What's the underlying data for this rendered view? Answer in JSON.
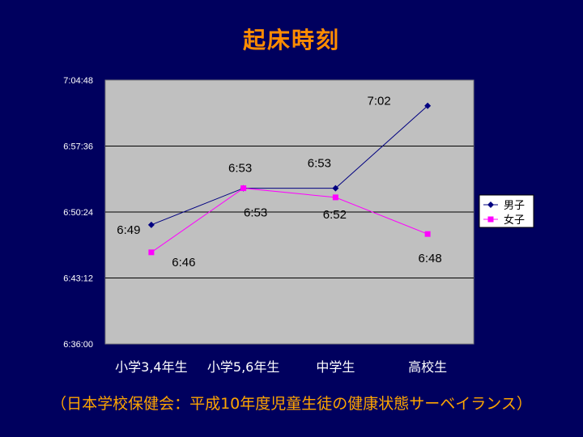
{
  "chart_data": {
    "type": "line",
    "title": "起床時刻",
    "source_note": "（日本学校保健会：平成10年度児童生徒の健康状態サーベイランス）",
    "categories": [
      "小学3,4年生",
      "小学5,6年生",
      "中学生",
      "高校生"
    ],
    "y_ticks": [
      "7:04:48",
      "6:57:36",
      "6:50:24",
      "6:43:12",
      "6:36:00"
    ],
    "ylim": [
      "6:36:00",
      "7:04:48"
    ],
    "grid": true,
    "legend_position": "right",
    "series": [
      {
        "name": "男子",
        "values": [
          "6:49",
          "6:53",
          "6:53",
          "7:02"
        ],
        "labels": [
          "6:49",
          "6:53",
          "6:53",
          "7:02"
        ],
        "color": "#000080",
        "marker": "diamond"
      },
      {
        "name": "女子",
        "values": [
          "6:46",
          "6:53",
          "6:52",
          "6:48"
        ],
        "labels": [
          "6:46",
          "6:53",
          "6:52",
          "6:48"
        ],
        "color": "#ff00ff",
        "marker": "square"
      }
    ]
  },
  "colors": {
    "background": "#00005e",
    "plot_area": "#c0c0c0",
    "title": "#ff8c00",
    "footer": "#ffa500"
  }
}
